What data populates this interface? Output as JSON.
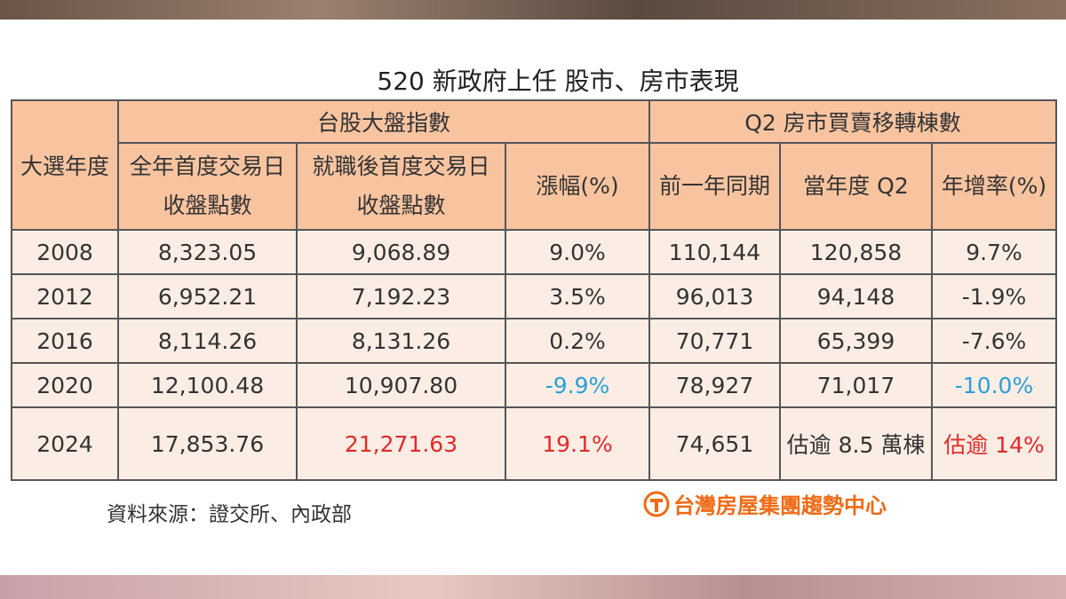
{
  "header": {
    "title": "520 新政府上任  股市、房市表現"
  },
  "table": {
    "year_header": "大選年度",
    "groups": [
      "台股大盤指數",
      "Q2 房市買賣移轉棟數"
    ],
    "columns": [
      [
        "全年首度交易日",
        "收盤點數"
      ],
      [
        "就職後首度交易日",
        "收盤點數"
      ],
      [
        "漲幅(%)"
      ],
      [
        "前一年同期"
      ],
      [
        "當年度 Q2"
      ],
      [
        "年增率(%)"
      ]
    ],
    "rows": [
      [
        "2008",
        "8,323.05",
        "9,068.89",
        "9.0%",
        "110,144",
        "120,858",
        "9.7%"
      ],
      [
        "2012",
        "6,952.21",
        "7,192.23",
        "3.5%",
        "96,013",
        "94,148",
        "-1.9%"
      ],
      [
        "2016",
        "8,114.26",
        "8,131.26",
        "0.2%",
        "70,771",
        "65,399",
        "-7.6%"
      ],
      [
        "2020",
        "12,100.48",
        "10,907.80",
        "-9.9%",
        "78,927",
        "71,017",
        "-10.0%"
      ],
      [
        "2024",
        "17,853.76",
        "21,271.63",
        "19.1%",
        "74,651",
        "估逾 8.5 萬棟",
        "估逾 14%"
      ]
    ]
  },
  "footer": {
    "source": "資料來源：證交所、內政部",
    "logo": "台灣房屋集團趨勢中心"
  }
}
